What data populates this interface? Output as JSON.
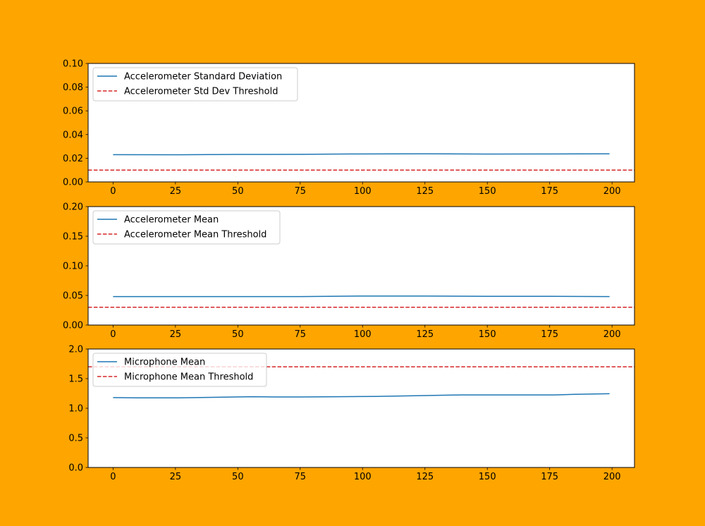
{
  "figure": {
    "background": "#ffa500"
  },
  "chart_data": [
    {
      "type": "line",
      "title": "",
      "xlabel": "",
      "ylabel": "",
      "xlim": [
        -10,
        209
      ],
      "ylim": [
        0.0,
        0.1
      ],
      "xticks": [
        0,
        25,
        50,
        75,
        100,
        125,
        150,
        175,
        200
      ],
      "xtick_labels": [
        "0",
        "25",
        "50",
        "75",
        "100",
        "125",
        "150",
        "175",
        "200"
      ],
      "yticks": [
        0.0,
        0.02,
        0.04,
        0.06,
        0.08,
        0.1
      ],
      "ytick_labels": [
        "0.00",
        "0.02",
        "0.04",
        "0.06",
        "0.08",
        "0.10"
      ],
      "grid": false,
      "legend_position": "upper-left",
      "series": [
        {
          "name": "Accelerometer Standard Deviation",
          "color": "#1f77b4",
          "style": "solid",
          "x": [
            0,
            25,
            50,
            75,
            95,
            125,
            150,
            175,
            199
          ],
          "y": [
            0.023,
            0.0229,
            0.0232,
            0.0233,
            0.0236,
            0.0237,
            0.0235,
            0.0236,
            0.0237
          ]
        }
      ],
      "hlines": [
        {
          "name": "Accelerometer Std Dev Threshold",
          "color": "#d62728",
          "style": "dashed",
          "y": 0.01
        }
      ]
    },
    {
      "type": "line",
      "title": "",
      "xlabel": "",
      "ylabel": "",
      "xlim": [
        -10,
        209
      ],
      "ylim": [
        0.0,
        0.2
      ],
      "xticks": [
        0,
        25,
        50,
        75,
        100,
        125,
        150,
        175,
        200
      ],
      "xtick_labels": [
        "0",
        "25",
        "50",
        "75",
        "100",
        "125",
        "150",
        "175",
        "200"
      ],
      "yticks": [
        0.0,
        0.05,
        0.1,
        0.15,
        0.2
      ],
      "ytick_labels": [
        "0.00",
        "0.05",
        "0.10",
        "0.15",
        "0.20"
      ],
      "grid": false,
      "legend_position": "upper-left",
      "series": [
        {
          "name": "Accelerometer Mean",
          "color": "#1f77b4",
          "style": "solid",
          "x": [
            0,
            25,
            50,
            75,
            100,
            125,
            150,
            175,
            199
          ],
          "y": [
            0.048,
            0.048,
            0.048,
            0.048,
            0.049,
            0.049,
            0.0485,
            0.0485,
            0.048
          ]
        }
      ],
      "hlines": [
        {
          "name": "Accelerometer Mean Threshold",
          "color": "#d62728",
          "style": "dashed",
          "y": 0.03
        }
      ]
    },
    {
      "type": "line",
      "title": "",
      "xlabel": "",
      "ylabel": "",
      "xlim": [
        -10,
        209
      ],
      "ylim": [
        0.0,
        2.0
      ],
      "xticks": [
        0,
        25,
        50,
        75,
        100,
        125,
        150,
        175,
        200
      ],
      "xtick_labels": [
        "0",
        "25",
        "50",
        "75",
        "100",
        "125",
        "150",
        "175",
        "200"
      ],
      "yticks": [
        0.0,
        0.5,
        1.0,
        1.5,
        2.0
      ],
      "ytick_labels": [
        "0.0",
        "0.5",
        "1.0",
        "1.5",
        "2.0"
      ],
      "grid": false,
      "legend_position": "upper-left",
      "series": [
        {
          "name": "Microphone Mean",
          "color": "#1f77b4",
          "style": "solid",
          "x": [
            0,
            10,
            25,
            40,
            56,
            65,
            75,
            90,
            105,
            125,
            140,
            160,
            177,
            185,
            199
          ],
          "y": [
            1.18,
            1.175,
            1.175,
            1.185,
            1.195,
            1.19,
            1.19,
            1.195,
            1.2,
            1.215,
            1.225,
            1.225,
            1.225,
            1.235,
            1.245
          ]
        }
      ],
      "hlines": [
        {
          "name": "Microphone Mean Threshold",
          "color": "#d62728",
          "style": "dashed",
          "y": 1.7
        }
      ]
    }
  ]
}
